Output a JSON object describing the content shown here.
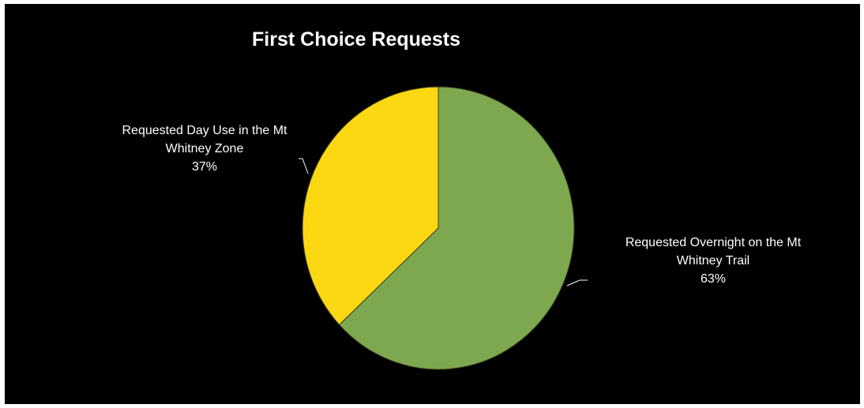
{
  "chart_data": {
    "type": "pie",
    "title": "First Choice Requests",
    "slices": [
      {
        "label_lines": [
          "Requested Overnight on the Mt",
          "Whitney Trail"
        ],
        "value": 63,
        "value_label": "63%",
        "color": "#7ea84f"
      },
      {
        "label_lines": [
          "Requested Day Use in the Mt",
          "Whitney Zone"
        ],
        "value": 37,
        "value_label": "37%",
        "color": "#fcd813"
      }
    ],
    "start_angle": "12 o'clock",
    "direction": "clockwise",
    "background": "#000000",
    "legend": "none"
  }
}
